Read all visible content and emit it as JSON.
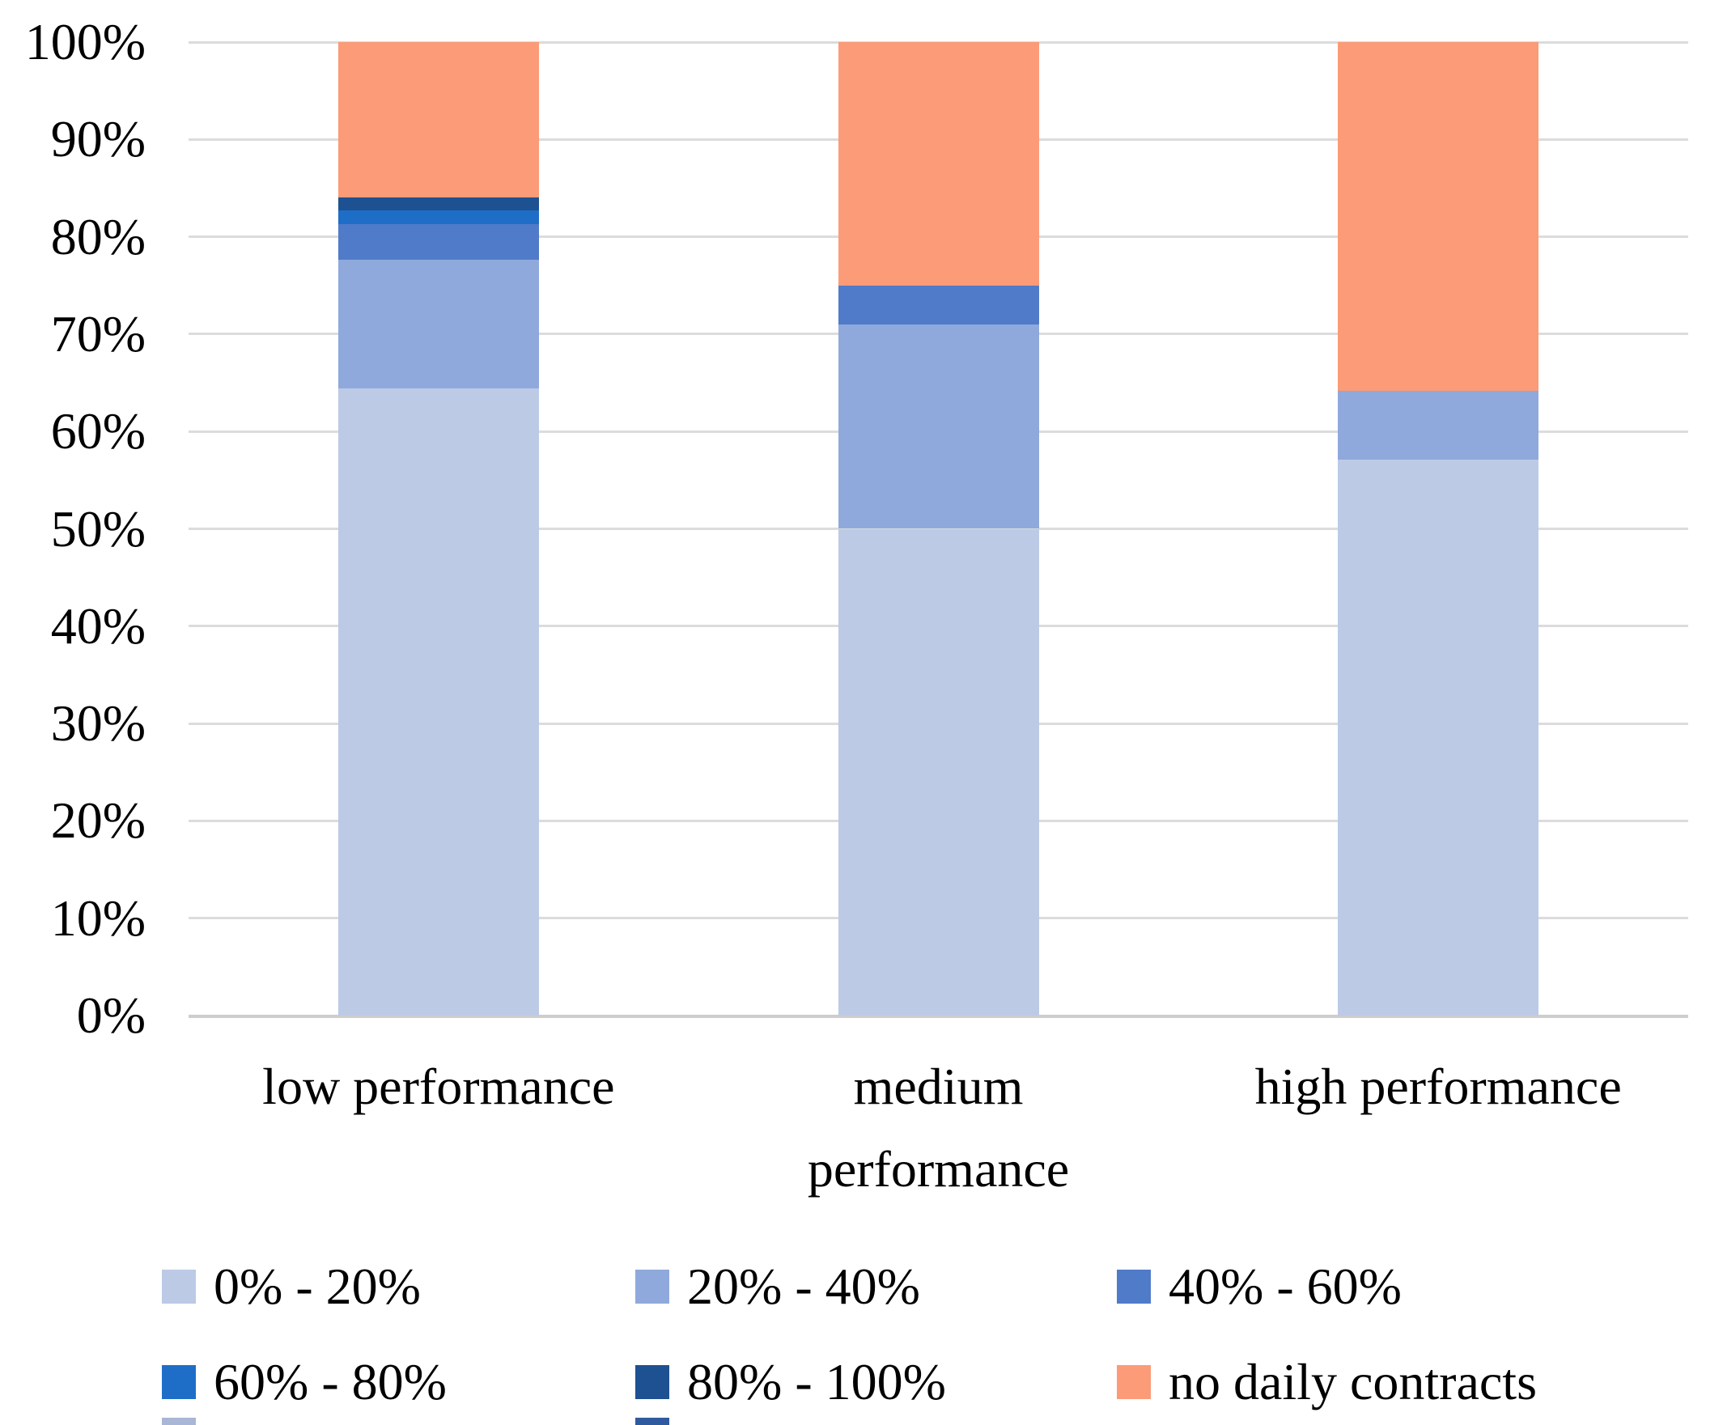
{
  "chart_data": {
    "type": "bar",
    "variant": "stacked-100-percent-column",
    "title": "",
    "xlabel": "",
    "ylabel": "",
    "categories": [
      "low performance",
      "medium performance",
      "high performance"
    ],
    "category_label_lines": [
      [
        "low performance"
      ],
      [
        "medium",
        "performance"
      ],
      [
        "high performance"
      ]
    ],
    "series": [
      {
        "name": "0% - 20%",
        "color": "#BCCAE6",
        "values": [
          64.4,
          50.0,
          57.1
        ]
      },
      {
        "name": "20% - 40%",
        "color": "#8FA9DC",
        "values": [
          13.2,
          21.0,
          7.1
        ]
      },
      {
        "name": "40% - 60%",
        "color": "#507BC8",
        "values": [
          3.7,
          4.0,
          0
        ]
      },
      {
        "name": "60% - 80%",
        "color": "#1E6EC8",
        "values": [
          1.4,
          0,
          0
        ]
      },
      {
        "name": "80% - 100%",
        "color": "#1E5191",
        "values": [
          1.3,
          0,
          0
        ]
      },
      {
        "name": "no daily contracts",
        "color": "#FC9B77",
        "values": [
          16.0,
          25.0,
          35.8
        ]
      }
    ],
    "y_ticks": [
      "0%",
      "10%",
      "20%",
      "30%",
      "40%",
      "50%",
      "60%",
      "70%",
      "80%",
      "90%",
      "100%"
    ],
    "y_tick_values": [
      0,
      10,
      20,
      30,
      40,
      50,
      60,
      70,
      80,
      90,
      100
    ],
    "ylim": [
      0,
      100
    ],
    "grid": true,
    "legend_position": "bottom",
    "legend_rows": 2,
    "legend_columns": 3
  },
  "colors": {
    "gridline": "#DCDCDC",
    "axis_line": "#CDCDCD",
    "text": "#000000",
    "background": "#FFFFFF",
    "cropped_sliver_left": "#A9B6D6",
    "cropped_sliver_middle": "#2F5B9E"
  }
}
